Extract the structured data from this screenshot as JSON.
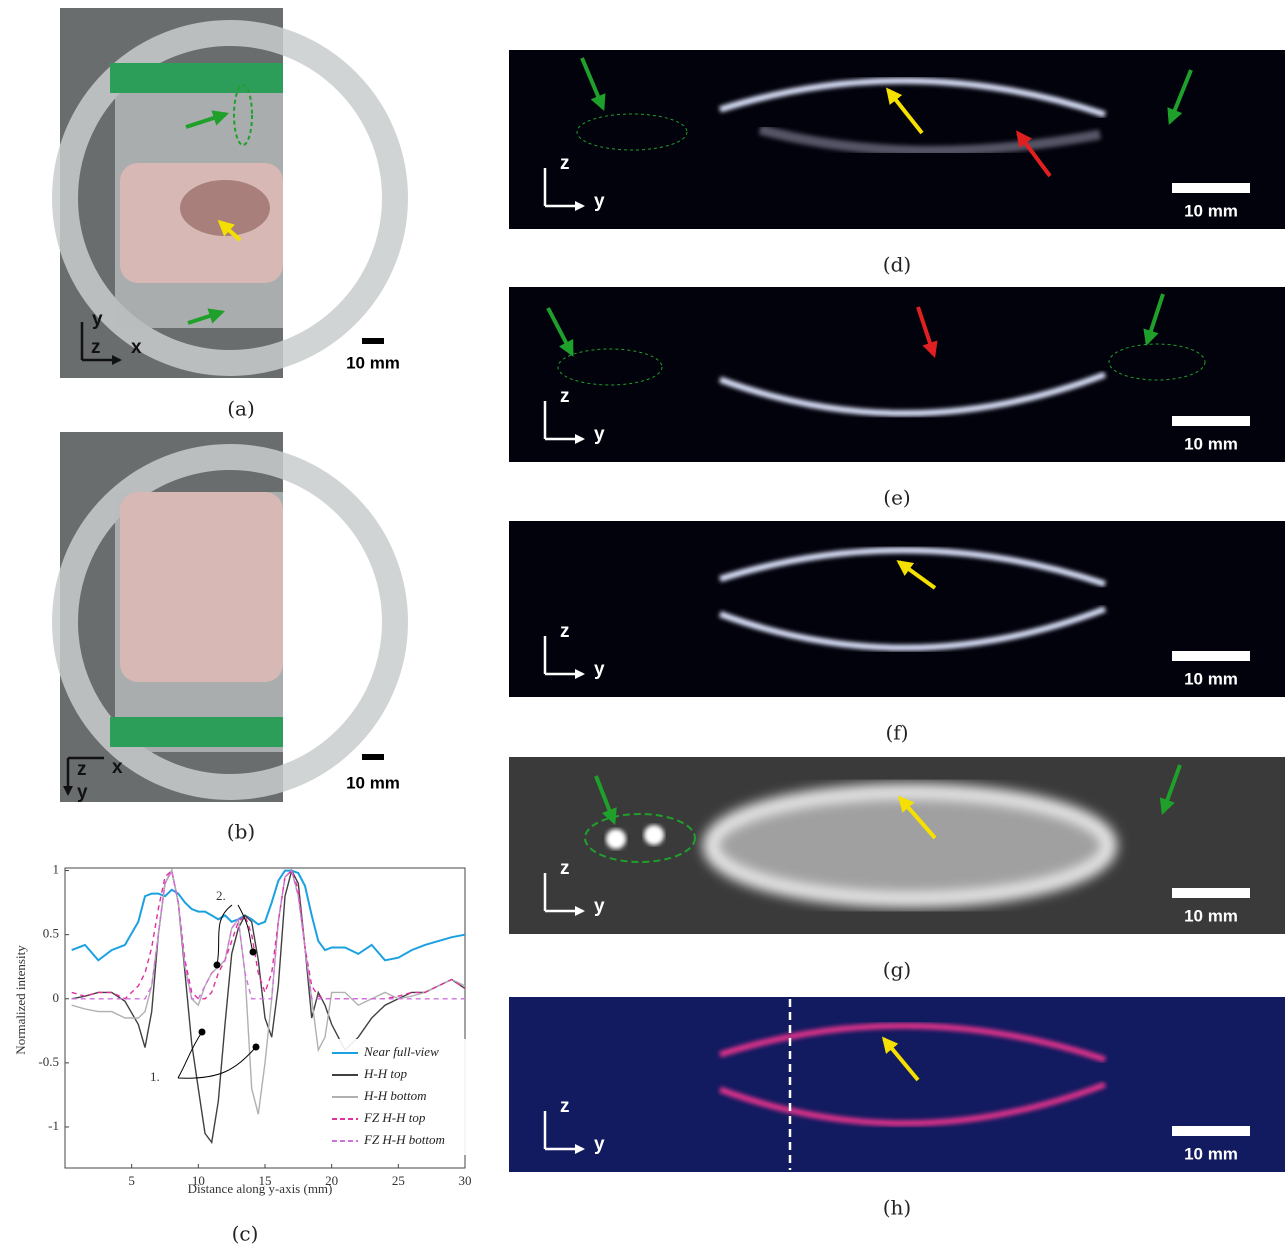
{
  "panels": [
    {
      "label": "(a)",
      "scale_bar": "10 mm",
      "axis_labels": [
        "y",
        "z",
        "x"
      ]
    },
    {
      "label": "(b)",
      "scale_bar": "10 mm",
      "axis_labels": [
        "z",
        "x",
        "y"
      ]
    },
    {
      "label": "(c)"
    },
    {
      "label": "(d)",
      "scale_bar": "10 mm",
      "axis_labels": [
        "z",
        "y"
      ]
    },
    {
      "label": "(e)",
      "scale_bar": "10 mm",
      "axis_labels": [
        "z",
        "y"
      ]
    },
    {
      "label": "(f)",
      "scale_bar": "10 mm",
      "axis_labels": [
        "z",
        "y"
      ]
    },
    {
      "label": "(g)",
      "scale_bar": "10 mm",
      "axis_labels": [
        "z",
        "y"
      ]
    },
    {
      "label": "(h)",
      "scale_bar": "10 mm",
      "axis_labels": [
        "z",
        "y"
      ]
    }
  ],
  "chart_data": {
    "type": "line",
    "xlabel": "Distance along y-axis (mm)",
    "ylabel": "Normalized intensity",
    "xlim": [
      0,
      30
    ],
    "ylim": [
      -1.32,
      1.02
    ],
    "xticks": [
      5,
      10,
      15,
      20,
      25,
      30
    ],
    "yticks": [
      -1,
      -0.5,
      0,
      0.5,
      1
    ],
    "legend": "lower right",
    "annotations": [
      "1.",
      "2."
    ],
    "x": [
      0.5,
      1.5,
      2.5,
      3.5,
      4.5,
      5.5,
      6,
      6.5,
      7,
      7.5,
      8,
      8.5,
      9,
      9.5,
      10,
      10.5,
      11,
      11.5,
      12,
      12.5,
      13,
      13.5,
      14,
      14.5,
      15,
      15.5,
      16,
      16.5,
      17,
      17.5,
      18,
      18.5,
      19,
      19.5,
      20,
      21,
      22,
      23,
      24,
      25,
      26,
      27,
      28,
      29,
      30
    ],
    "series": [
      {
        "name": "Near full-view",
        "color": "#1ba1e2",
        "style": "solid",
        "values": [
          0.38,
          0.42,
          0.3,
          0.38,
          0.42,
          0.6,
          0.8,
          0.82,
          0.82,
          0.8,
          0.85,
          0.82,
          0.75,
          0.7,
          0.68,
          0.68,
          0.65,
          0.62,
          0.65,
          0.6,
          0.62,
          0.65,
          0.62,
          0.58,
          0.6,
          0.75,
          0.92,
          1.0,
          1.0,
          0.98,
          0.88,
          0.65,
          0.45,
          0.38,
          0.4,
          0.4,
          0.35,
          0.42,
          0.3,
          0.32,
          0.38,
          0.42,
          0.45,
          0.48,
          0.5
        ]
      },
      {
        "name": "H-H top",
        "color": "#404040",
        "style": "solid",
        "values": [
          0.0,
          0.02,
          0.05,
          0.05,
          -0.02,
          -0.2,
          -0.38,
          -0.1,
          0.5,
          0.9,
          1.0,
          0.75,
          0.2,
          -0.35,
          -0.7,
          -1.05,
          -1.12,
          -0.8,
          -0.2,
          0.35,
          0.55,
          0.65,
          0.6,
          0.3,
          -0.15,
          -0.3,
          0.1,
          0.8,
          1.0,
          0.9,
          0.4,
          -0.15,
          0.05,
          -0.05,
          -0.2,
          -0.4,
          -0.3,
          -0.15,
          -0.05,
          0.0,
          0.05,
          0.05,
          0.1,
          0.15,
          0.08
        ]
      },
      {
        "name": "H-H bottom",
        "color": "#b0b0b0",
        "style": "solid",
        "values": [
          -0.05,
          -0.08,
          -0.1,
          -0.1,
          -0.15,
          -0.15,
          -0.1,
          0.1,
          0.5,
          0.9,
          1.0,
          0.75,
          0.25,
          0.0,
          -0.05,
          0.1,
          0.2,
          0.25,
          0.3,
          0.55,
          0.62,
          0.2,
          -0.7,
          -0.9,
          -0.5,
          0.0,
          0.6,
          0.95,
          1.0,
          0.8,
          0.4,
          0.0,
          -0.4,
          -0.3,
          0.05,
          0.05,
          -0.05,
          0.0,
          0.05,
          0.0,
          0.02,
          0.05,
          0.1,
          0.15,
          0.1
        ]
      },
      {
        "name": "FZ H-H top",
        "color": "#e0309a",
        "style": "dashed",
        "values": [
          0.05,
          0.02,
          0.05,
          0.05,
          0.0,
          0.1,
          0.2,
          0.4,
          0.7,
          0.95,
          1.0,
          0.75,
          0.3,
          0.05,
          0.0,
          0.0,
          0.05,
          0.2,
          0.3,
          0.45,
          0.6,
          0.65,
          0.5,
          0.2,
          0.05,
          0.2,
          0.6,
          0.95,
          1.0,
          0.85,
          0.4,
          0.1,
          0.02,
          0.0,
          0.0,
          0.0,
          0.0,
          0.0,
          0.0,
          0.02,
          0.05,
          0.05,
          0.1,
          0.15,
          0.08
        ]
      },
      {
        "name": "FZ H-H bottom",
        "color": "#d070e0",
        "style": "dashed",
        "values": [
          0,
          0,
          0,
          0,
          0,
          0,
          0,
          0.1,
          0.5,
          0.9,
          1.0,
          0.75,
          0.25,
          0,
          0,
          0.1,
          0.2,
          0.25,
          0.3,
          0.55,
          0.62,
          0.2,
          0,
          0,
          0,
          0,
          0.6,
          0.95,
          1.0,
          0.8,
          0.4,
          0,
          0,
          0,
          0,
          0,
          0,
          0,
          0,
          0,
          0,
          0,
          0,
          0,
          0
        ]
      }
    ]
  }
}
